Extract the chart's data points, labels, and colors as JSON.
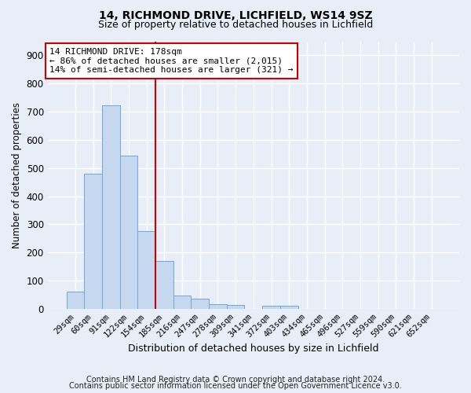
{
  "title": "14, RICHMOND DRIVE, LICHFIELD, WS14 9SZ",
  "subtitle": "Size of property relative to detached houses in Lichfield",
  "xlabel": "Distribution of detached houses by size in Lichfield",
  "ylabel": "Number of detached properties",
  "bar_labels": [
    "29sqm",
    "60sqm",
    "91sqm",
    "122sqm",
    "154sqm",
    "185sqm",
    "216sqm",
    "247sqm",
    "278sqm",
    "309sqm",
    "341sqm",
    "372sqm",
    "403sqm",
    "434sqm",
    "465sqm",
    "496sqm",
    "527sqm",
    "559sqm",
    "590sqm",
    "621sqm",
    "652sqm"
  ],
  "bar_values": [
    62,
    480,
    722,
    543,
    275,
    170,
    48,
    36,
    17,
    13,
    0,
    10,
    10,
    0,
    0,
    0,
    0,
    0,
    0,
    0,
    0
  ],
  "bar_color": "#c5d8f0",
  "bar_edge_color": "#6aaad4",
  "bg_color": "#e8eef8",
  "grid_color": "#ffffff",
  "vline_color": "#cc0000",
  "annotation_text": "14 RICHMOND DRIVE: 178sqm\n← 86% of detached houses are smaller (2,015)\n14% of semi-detached houses are larger (321) →",
  "annotation_box_facecolor": "#ffffff",
  "annotation_box_edgecolor": "#cc0000",
  "ylim": [
    0,
    950
  ],
  "yticks": [
    0,
    100,
    200,
    300,
    400,
    500,
    600,
    700,
    800,
    900
  ],
  "footer_line1": "Contains HM Land Registry data © Crown copyright and database right 2024.",
  "footer_line2": "Contains public sector information licensed under the Open Government Licence v3.0.",
  "vline_index": 5
}
